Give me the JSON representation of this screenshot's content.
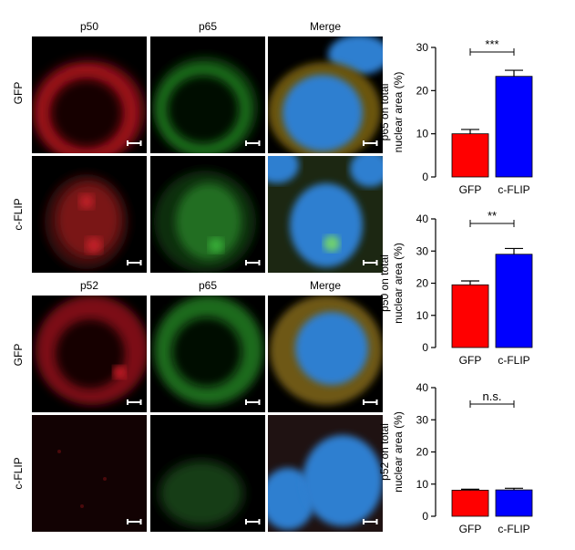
{
  "figure": {
    "top_block": {
      "columns": [
        "p50",
        "p65",
        "Merge"
      ],
      "rows": [
        "GFP",
        "c-FLIP"
      ]
    },
    "bottom_block": {
      "columns": [
        "p52",
        "p65",
        "Merge"
      ],
      "rows": [
        "GFP",
        "c-FLIP"
      ]
    },
    "colors": {
      "red_channel": "#d8202a",
      "green_channel": "#3bb83b",
      "blue_channel": "#2f7fd0",
      "gfp_bar": "#ff0000",
      "cflip_bar": "#0000ff"
    }
  },
  "chart_data": [
    {
      "type": "bar",
      "categories": [
        "GFP",
        "c-FLIP"
      ],
      "values": [
        10,
        23.3
      ],
      "errors": [
        1.0,
        1.4
      ],
      "ylabel": "p65 on total nuclear area (%)",
      "ylabel_lines": [
        "p65 on total",
        "nuclear area (%)"
      ],
      "ylim": [
        0,
        30
      ],
      "yticks": [
        0,
        10,
        20,
        30
      ],
      "significance": "***",
      "bar_colors": [
        "#ff0000",
        "#0000ff"
      ]
    },
    {
      "type": "bar",
      "categories": [
        "GFP",
        "c-FLIP"
      ],
      "values": [
        19.5,
        29
      ],
      "errors": [
        1.2,
        1.8
      ],
      "ylabel": "p50 on total nuclear area (%)",
      "ylabel_lines": [
        "p50 on total",
        "nuclear area (%)"
      ],
      "ylim": [
        0,
        40
      ],
      "yticks": [
        0,
        10,
        20,
        30,
        40
      ],
      "significance": "**",
      "bar_colors": [
        "#ff0000",
        "#0000ff"
      ]
    },
    {
      "type": "bar",
      "categories": [
        "GFP",
        "c-FLIP"
      ],
      "values": [
        8.1,
        8.2
      ],
      "errors": [
        0.3,
        0.5
      ],
      "ylabel": "p52 on total nuclear area (%)",
      "ylabel_lines": [
        "p52 on total",
        "nuclear area (%)"
      ],
      "ylim": [
        0,
        40
      ],
      "yticks": [
        0,
        10,
        20,
        30,
        40
      ],
      "significance": "n.s.",
      "bar_colors": [
        "#ff0000",
        "#0000ff"
      ]
    }
  ]
}
